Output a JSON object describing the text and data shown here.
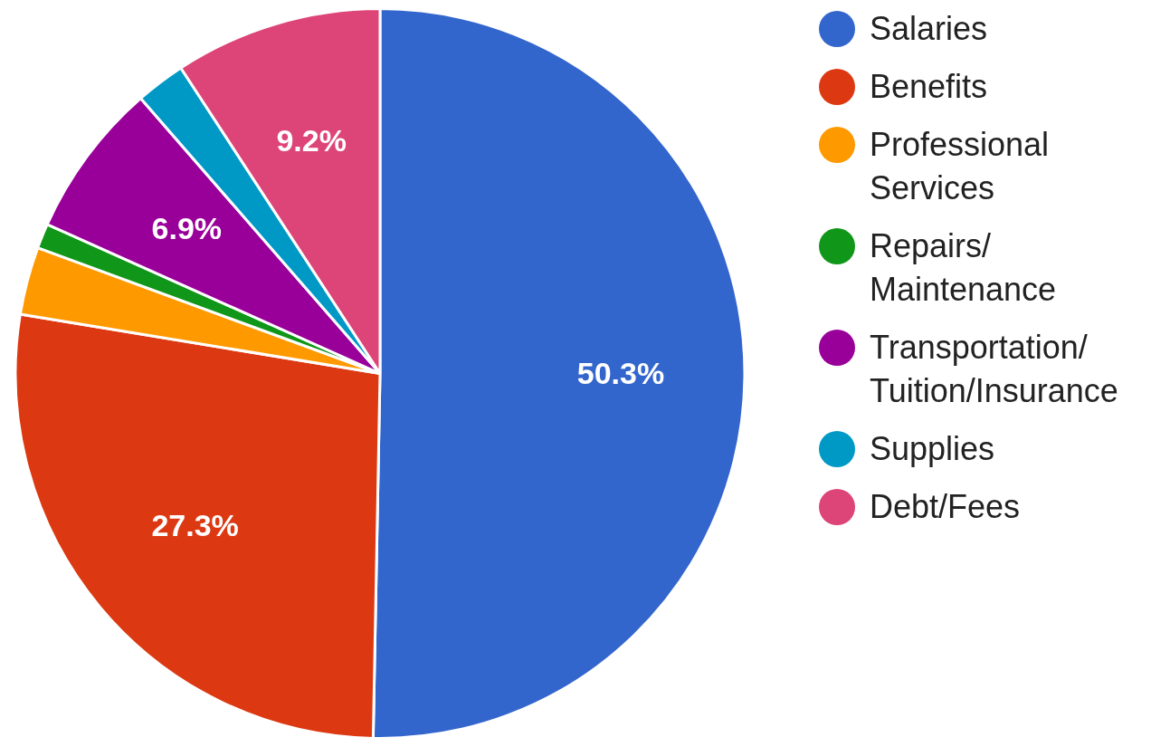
{
  "chart_data": {
    "type": "pie",
    "categories": [
      "Salaries",
      "Benefits",
      "Professional Services",
      "Repairs/ Maintenance",
      "Transportation/ Tuition/Insurance",
      "Supplies",
      "Debt/Fees"
    ],
    "values": [
      50.3,
      27.3,
      3.0,
      1.1,
      6.9,
      2.2,
      9.2
    ],
    "value_labels": [
      "50.3%",
      "27.3%",
      null,
      null,
      "6.9%",
      null,
      "9.2%"
    ],
    "colors": [
      "#3366cc",
      "#dc3912",
      "#ff9900",
      "#109618",
      "#990099",
      "#0099c6",
      "#dd4477"
    ],
    "legend": "right"
  }
}
